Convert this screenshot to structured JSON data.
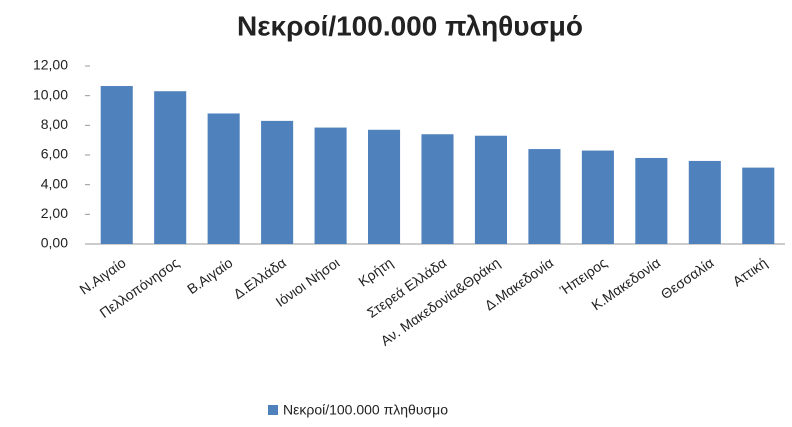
{
  "chart_data": {
    "type": "bar",
    "title": "Νεκροί/100.000 πληθυσμό",
    "categories": [
      "Ν.Αιγαίο",
      "Πελλοπόνησος",
      "Β.Αιγαίο",
      "Δ.Ελλάδα",
      "Ιόνιοι Νήσοι",
      "Κρήτη",
      "Στερεά Ελλάδα",
      "Αν. Μακεδονία&Θράκη",
      "Δ.Μακεδονία",
      "Ήπειρος",
      "Κ.Μακεδονία",
      "Θεσσαλία",
      "Αττική"
    ],
    "series": [
      {
        "name": "Νεκροί/100.000 πληθυσμο",
        "color": "#4f81bd",
        "values": [
          10.65,
          10.3,
          8.8,
          8.3,
          7.85,
          7.7,
          7.4,
          7.3,
          6.4,
          6.3,
          5.8,
          5.6,
          5.15
        ]
      }
    ],
    "ylim": [
      0,
      12
    ],
    "yticks": [
      {
        "value": 0,
        "label": "0,00"
      },
      {
        "value": 2,
        "label": "2,00"
      },
      {
        "value": 4,
        "label": "4,00"
      },
      {
        "value": 6,
        "label": "6,00"
      },
      {
        "value": 8,
        "label": "8,00"
      },
      {
        "value": 10,
        "label": "10,00"
      },
      {
        "value": 12,
        "label": "12,00"
      }
    ],
    "legend": "bottom"
  }
}
